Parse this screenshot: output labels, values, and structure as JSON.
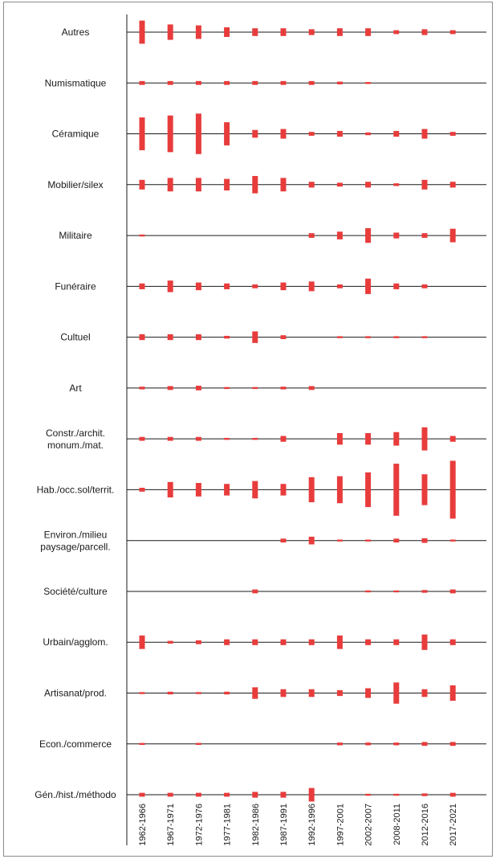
{
  "chart_data": {
    "type": "bar",
    "title": "",
    "xlabel": "",
    "ylabel": "",
    "bar_color": "#e83c3c",
    "line_color": "#1a1a1a",
    "periods": [
      "1962-1966",
      "1967-1971",
      "1972-1976",
      "1977-1981",
      "1982-1986",
      "1987-1991",
      "1992-1996",
      "1997-2001",
      "2002-2007",
      "2008-2011",
      "2012-2016",
      "2017-2021"
    ],
    "series": [
      {
        "name": "Autres",
        "label_lines": [
          "Autres"
        ],
        "values": [
          6,
          4,
          3.5,
          2.5,
          2,
          2,
          1.5,
          2,
          2,
          1,
          1.5,
          1
        ]
      },
      {
        "name": "Numismatique",
        "label_lines": [
          "Numismatique"
        ],
        "values": [
          1,
          1,
          1,
          1,
          1,
          1,
          1,
          0.7,
          0.5,
          null,
          null,
          null
        ]
      },
      {
        "name": "Céramique",
        "label_lines": [
          "Céramique"
        ],
        "values": [
          8.5,
          9.5,
          10.5,
          6,
          2,
          2.5,
          1,
          1.5,
          0.7,
          1.5,
          2.5,
          1
        ]
      },
      {
        "name": "Mobilier/silex",
        "label_lines": [
          "Mobilier/silex"
        ],
        "values": [
          2.5,
          3.5,
          3.5,
          3,
          4.5,
          3.5,
          1.5,
          1,
          1.5,
          0.7,
          2.5,
          1.5
        ]
      },
      {
        "name": "Militaire",
        "label_lines": [
          "Militaire"
        ],
        "values": [
          0.5,
          null,
          null,
          null,
          null,
          null,
          1.2,
          2,
          3.8,
          1.5,
          1.2,
          3.5
        ]
      },
      {
        "name": "Funéraire",
        "label_lines": [
          "Funéraire"
        ],
        "values": [
          1.5,
          3,
          2,
          1.5,
          1,
          2,
          2.5,
          1,
          4,
          1.5,
          1,
          null
        ]
      },
      {
        "name": "Cultuel",
        "label_lines": [
          "Cultuel"
        ],
        "values": [
          1.5,
          1.5,
          1.5,
          0.7,
          3,
          1,
          null,
          0.5,
          0.5,
          0.5,
          0.5,
          null
        ]
      },
      {
        "name": "Art",
        "label_lines": [
          "Art"
        ],
        "values": [
          0.7,
          1,
          1.2,
          0.5,
          0.5,
          0.7,
          1,
          null,
          null,
          null,
          null,
          null
        ]
      },
      {
        "name": "Constr./archit. monum./mat.",
        "label_lines": [
          "Constr./archit.",
          "monum./mat."
        ],
        "values": [
          1,
          1,
          1,
          0.5,
          0.5,
          1.5,
          null,
          3,
          3,
          3.5,
          6,
          1.5
        ]
      },
      {
        "name": "Hab./occ.sol/territ.",
        "label_lines": [
          "Hab./occ.sol/territ."
        ],
        "values": [
          1,
          4,
          3.5,
          3,
          4.5,
          3,
          6.5,
          7,
          9,
          13.5,
          8,
          15
        ]
      },
      {
        "name": "Environ./milieu paysage/parcell.",
        "label_lines": [
          "Environ./milieu",
          "paysage/parcell."
        ],
        "values": [
          null,
          null,
          null,
          null,
          null,
          1,
          2,
          0.5,
          0.5,
          1,
          1.2,
          0.5
        ]
      },
      {
        "name": "Société/culture",
        "label_lines": [
          "Société/culture"
        ],
        "values": [
          null,
          null,
          null,
          null,
          1,
          null,
          null,
          null,
          0.5,
          0.5,
          0.7,
          1
        ]
      },
      {
        "name": "Urbain/agglom.",
        "label_lines": [
          "Urbain/agglom."
        ],
        "values": [
          3.5,
          0.7,
          1,
          1.5,
          1.5,
          1.5,
          1.5,
          3.5,
          1.5,
          1.5,
          4,
          1.5
        ]
      },
      {
        "name": "Artisanat/prod.",
        "label_lines": [
          "Artisanat/prod."
        ],
        "values": [
          0.5,
          0.7,
          0.5,
          0.7,
          3,
          2,
          2,
          1.5,
          2.5,
          5.5,
          2,
          4
        ]
      },
      {
        "name": "Econ./commerce",
        "label_lines": [
          "Econ./commerce"
        ],
        "values": [
          0.5,
          null,
          0.5,
          null,
          null,
          null,
          null,
          0.7,
          0.7,
          0.7,
          1,
          1
        ]
      },
      {
        "name": "Gén./hist./méthodo",
        "label_lines": [
          "Gén./hist./méthodo"
        ],
        "values": [
          1,
          1,
          1,
          1,
          1.5,
          1.5,
          3.5,
          null,
          0.5,
          0.5,
          0.7,
          1
        ]
      }
    ]
  }
}
